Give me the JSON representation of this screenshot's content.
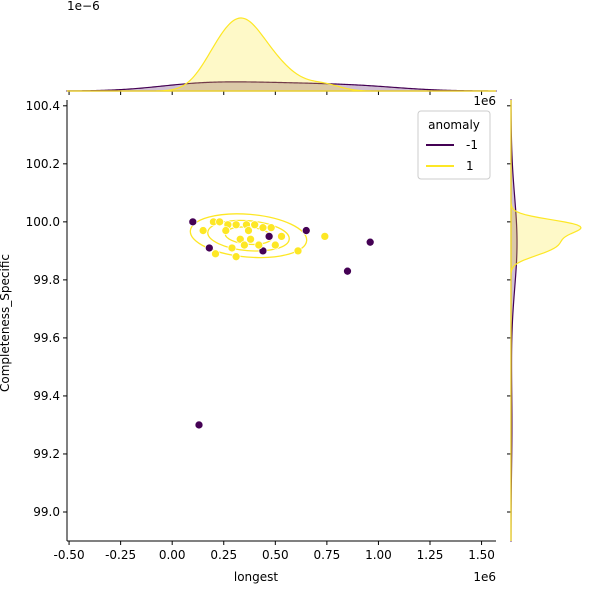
{
  "chart_data": {
    "type": "scatter",
    "x_label": "longest",
    "y_label": "Completeness_Specific",
    "x_offset_label": "1e6",
    "y_density_offset_label": "1e−6",
    "x_density_offset_label": "1e6",
    "xlim": [
      -0.51,
      1.57
    ],
    "ylim": [
      98.9,
      100.42
    ],
    "xticks": [
      {
        "value": -0.5,
        "label": "-0.50"
      },
      {
        "value": -0.25,
        "label": "-0.25"
      },
      {
        "value": 0,
        "label": "0.00"
      },
      {
        "value": 0.25,
        "label": "0.25"
      },
      {
        "value": 0.5,
        "label": "0.50"
      },
      {
        "value": 0.75,
        "label": "0.75"
      },
      {
        "value": 1,
        "label": "1.00"
      },
      {
        "value": 1.25,
        "label": "1.25"
      },
      {
        "value": 1.5,
        "label": "1.50"
      }
    ],
    "yticks": [
      {
        "value": 99.0,
        "label": "99.0"
      },
      99.2,
      99.4,
      99.6,
      99.8,
      {
        "value": 100.0,
        "label": "100.0"
      },
      100.2,
      100.4
    ],
    "legend_title": "anomaly",
    "legend_position": "upper right",
    "series": [
      {
        "name": "-1",
        "color": "#440154",
        "x": [
          0.1,
          0.18,
          0.65,
          0.96,
          0.85,
          0.13,
          0.44,
          0.47
        ],
        "values": [
          100.0,
          99.91,
          99.97,
          99.93,
          99.83,
          99.3,
          99.9,
          99.95
        ]
      },
      {
        "name": "1",
        "color": "#fde725",
        "x": [
          0.2,
          0.23,
          0.27,
          0.31,
          0.36,
          0.4,
          0.44,
          0.48,
          0.26,
          0.33,
          0.38,
          0.29,
          0.35,
          0.42,
          0.5,
          0.53,
          0.21,
          0.31,
          0.61,
          0.74,
          0.15,
          0.37
        ],
        "values": [
          100.0,
          100.0,
          99.99,
          99.99,
          99.99,
          99.99,
          99.98,
          99.98,
          99.97,
          99.94,
          99.94,
          99.91,
          99.92,
          99.92,
          99.92,
          99.95,
          99.89,
          99.88,
          99.9,
          99.95,
          99.97,
          99.97
        ]
      }
    ]
  }
}
